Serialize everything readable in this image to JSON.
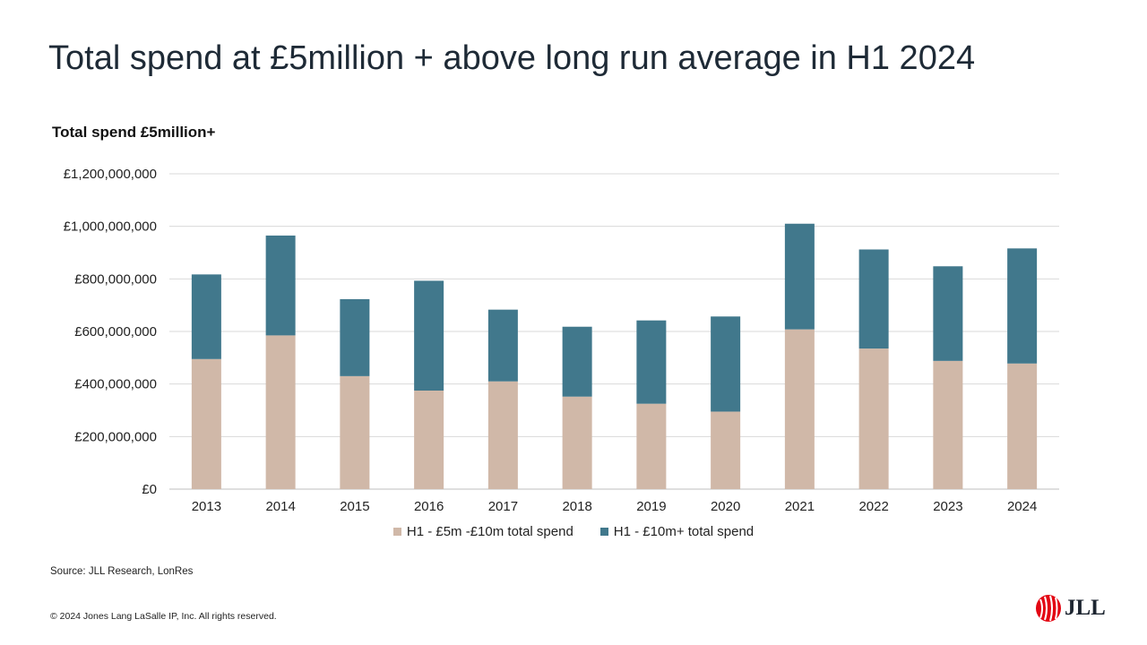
{
  "slide": {
    "title": "Total spend at £5million + above long run average in H1 2024",
    "source": "Source: JLL Research, LonRes",
    "copyright": "© 2024 Jones Lang LaSalle IP,  Inc.  All rights reserved.",
    "logo_text": "JLL",
    "logo_icon": "jll-flame-icon",
    "logo_color": "#e30613"
  },
  "chart_data": {
    "type": "bar",
    "stacked": true,
    "title": "Total spend £5million+",
    "xlabel": "",
    "ylabel": "",
    "ylim": [
      0,
      1200000000
    ],
    "y_ticks": [
      0,
      200000000,
      400000000,
      600000000,
      800000000,
      1000000000,
      1200000000
    ],
    "y_tick_labels": [
      "£0",
      "£200,000,000",
      "£400,000,000",
      "£600,000,000",
      "£800,000,000",
      "£1,000,000,000",
      "£1,200,000,000"
    ],
    "grid": true,
    "legend_position": "bottom",
    "categories": [
      "2013",
      "2014",
      "2015",
      "2016",
      "2017",
      "2018",
      "2019",
      "2020",
      "2021",
      "2022",
      "2023",
      "2024"
    ],
    "series": [
      {
        "name": "H1 - £5m -£10m total spend",
        "color": "#d0b8a8",
        "values": [
          495000000,
          585000000,
          430000000,
          375000000,
          410000000,
          352000000,
          325000000,
          295000000,
          608000000,
          535000000,
          488000000,
          478000000
        ]
      },
      {
        "name": "H1 - £10m+ total spend",
        "color": "#41788c",
        "values": [
          322000000,
          380000000,
          293000000,
          418000000,
          273000000,
          266000000,
          317000000,
          362000000,
          402000000,
          377000000,
          360000000,
          438000000
        ]
      }
    ]
  }
}
